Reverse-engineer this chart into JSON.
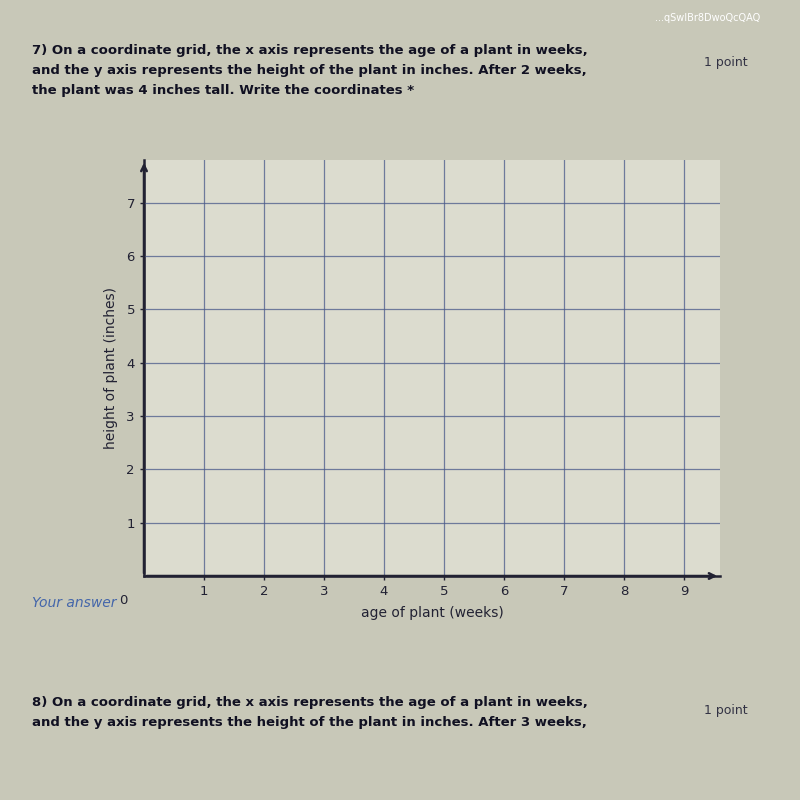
{
  "title_line1": "7) On a coordinate grid, the x axis represents the age of a plant in weeks,",
  "title_line2": "and the y axis represents the height of the plant in inches. After 2 weeks,",
  "title_line3": "the plant was 4 inches tall. Write the coordinates *",
  "points_label": "1 point",
  "xlabel": "age of plant (weeks)",
  "ylabel": "height of plant (inches)",
  "xlim": [
    0,
    9.6
  ],
  "ylim": [
    0,
    7.8
  ],
  "xticks": [
    1,
    2,
    3,
    4,
    5,
    6,
    7,
    8,
    9
  ],
  "yticks": [
    1,
    2,
    3,
    4,
    5,
    6,
    7
  ],
  "grid_color": "#4a5a8a",
  "axis_color": "#222233",
  "plot_bg_color": "#dcdccf",
  "figure_bg_color": "#c8c8b8",
  "grid_linewidth": 0.9,
  "axis_linewidth": 1.8,
  "xlabel_fontsize": 10,
  "ylabel_fontsize": 10,
  "tick_fontsize": 9.5,
  "your_answer_text": "Your answer",
  "q8_line1": "8) On a coordinate grid, the x axis represents the age of a plant in weeks,",
  "q8_line2": "and the y axis represents the height of the plant in inches. After 3 weeks,",
  "q8_points": "1 point",
  "top_bar_color": "#5577aa",
  "top_bar_text": "...qSwIBr8DwoQcQAQ"
}
